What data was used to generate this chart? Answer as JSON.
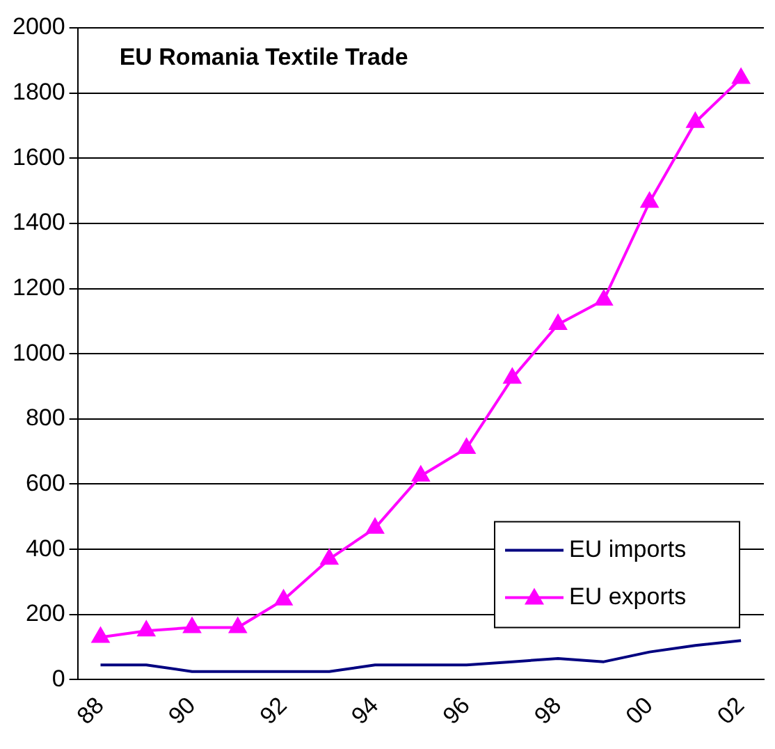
{
  "chart_data": {
    "type": "line",
    "title": "EU Romania Textile Trade",
    "categories": [
      "88",
      null,
      "90",
      null,
      "92",
      null,
      "94",
      null,
      "96",
      null,
      "98",
      null,
      "00",
      null,
      "02"
    ],
    "series": [
      {
        "name": "EU imports",
        "color": "#000080",
        "marker": "none",
        "values": [
          45,
          45,
          25,
          25,
          25,
          25,
          45,
          45,
          45,
          55,
          65,
          55,
          85,
          105,
          120
        ]
      },
      {
        "name": "EU exports",
        "color": "#ff00ff",
        "marker": "triangle",
        "values": [
          130,
          150,
          160,
          160,
          245,
          370,
          465,
          625,
          710,
          925,
          1090,
          1165,
          1465,
          1710,
          1845
        ]
      }
    ],
    "ylim": [
      0,
      2000
    ],
    "yticks": [
      0,
      200,
      400,
      600,
      800,
      1000,
      1200,
      1400,
      1600,
      1800,
      2000
    ],
    "grid": "y",
    "legend": "bottom right"
  }
}
